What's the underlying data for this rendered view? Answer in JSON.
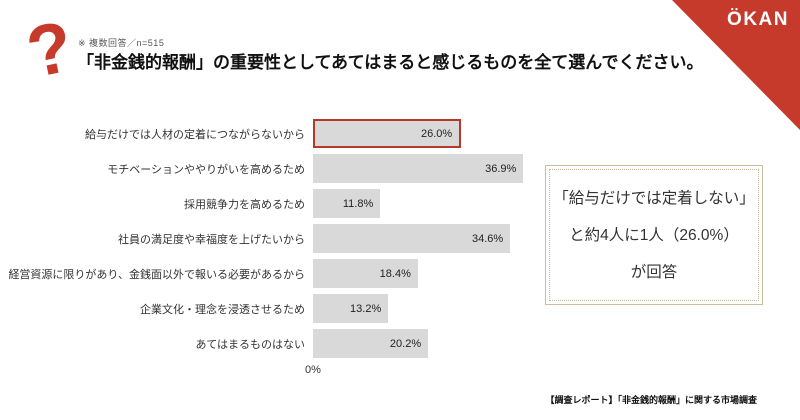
{
  "header": {
    "question_mark_glyph": "?",
    "note": "※ 複数回答／n=515",
    "title": "「非金銭的報酬」の重要性としてあてはまると感じるものを全て選んでください。"
  },
  "logo": {
    "text": "ÖKAN"
  },
  "chart_data": {
    "type": "bar",
    "orientation": "horizontal",
    "title": "",
    "xlabel": "",
    "ylabel": "",
    "xlim": [
      0,
      40
    ],
    "grid": false,
    "legend": false,
    "x_axis_origin_label": "0%",
    "categories": [
      "給与だけでは人材の定着につながらないから",
      "モチベーションややりがいを高めるため",
      "採用競争力を高めるため",
      "社員の満足度や幸福度を上げたいから",
      "経営資源に限りがあり、金銭面以外で報いる必要があるから",
      "企業文化・理念を浸透させるため",
      "あてはまるものはない"
    ],
    "values": [
      26.0,
      36.9,
      11.8,
      34.6,
      18.4,
      13.2,
      20.2
    ],
    "value_labels": [
      "26.0%",
      "36.9%",
      "11.8%",
      "34.6%",
      "18.4%",
      "13.2%",
      "20.2%"
    ],
    "highlighted_index": 0
  },
  "callout": {
    "lines": [
      "「給与だけでは定着しない」",
      "と約4人に1人（26.0%）",
      "が回答"
    ]
  },
  "footer": "【調査レポート】「非金銭的報酬」に関する市場調査",
  "colors": {
    "brand_red": "#c63a2b",
    "bar_fill": "#d9d9d9",
    "highlight_border": "#b5392b",
    "callout_border": "#cbbd9e",
    "ink": "#1a1a1a"
  }
}
